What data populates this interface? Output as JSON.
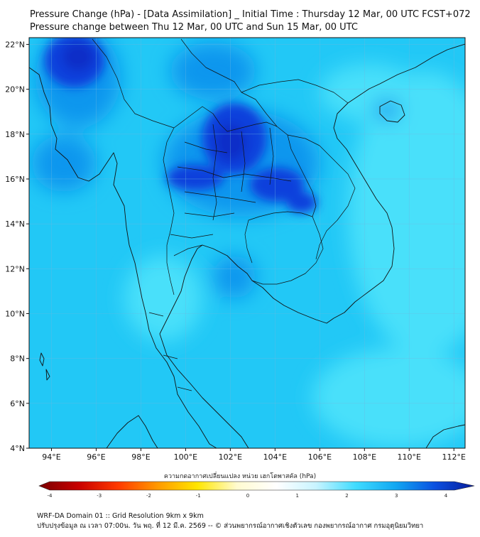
{
  "header": {
    "title_line1": "Pressure Change (hPa) - [Data Assimilation] _ Initial Time : Thursday 12 Mar, 00 UTC FCST+072",
    "title_line2": "Pressure change between Thu 12 Mar, 00 UTC and Sun 15 Mar, 00 UTC"
  },
  "map": {
    "lat_labels": [
      "22°N",
      "20°N",
      "18°N",
      "16°N",
      "14°N",
      "12°N",
      "10°N",
      "8°N",
      "6°N",
      "4°N"
    ],
    "lon_labels": [
      "94°E",
      "96°E",
      "98°E",
      "100°E",
      "102°E",
      "104°E",
      "106°E",
      "108°E",
      "110°E",
      "112°E"
    ],
    "lat_values": [
      22,
      20,
      18,
      16,
      14,
      12,
      10,
      8,
      6,
      4
    ],
    "lon_values": [
      94,
      96,
      98,
      100,
      102,
      104,
      106,
      108,
      110,
      112
    ],
    "extent": {
      "lon_min": 93.0,
      "lon_max": 112.5,
      "lat_min": 4.0,
      "lat_max": 22.3
    },
    "field_colors": {
      "base": "#22c8f6",
      "light": "#4ae0fa",
      "mid": "#1196ee",
      "dark": "#0b40dc",
      "darkest": "#0a2dc8"
    }
  },
  "colorbar": {
    "label": "ความกดอากาศเปลี่ยนแปลง หน่วย เฮกโตพาสคัล (hPa)",
    "tick_labels": [
      "-4",
      "-3",
      "-2",
      "-1",
      "0",
      "1",
      "2",
      "3",
      "4"
    ],
    "range": [
      -4,
      4
    ],
    "stops": [
      "#7a0000",
      "#c80000",
      "#ff3a00",
      "#ff9a00",
      "#ffe600",
      "#fffbd0",
      "#ffffff",
      "#c8f4ff",
      "#40dcff",
      "#12a8f2",
      "#0a50e0",
      "#081c9a"
    ]
  },
  "footer": {
    "line1": "WRF-DA Domain 01 :: Grid Resolution 9km x 9km",
    "line2": "ปรับปรุงข้อมูล ณ เวลา 07:00น. วัน พฤ. ที่ 12 มี.ค. 2569 -- © ส่วนพยากรณ์อากาศเชิงตัวเลข กองพยากรณ์อากาศ กรมอุตุนิยมวิทยา"
  }
}
